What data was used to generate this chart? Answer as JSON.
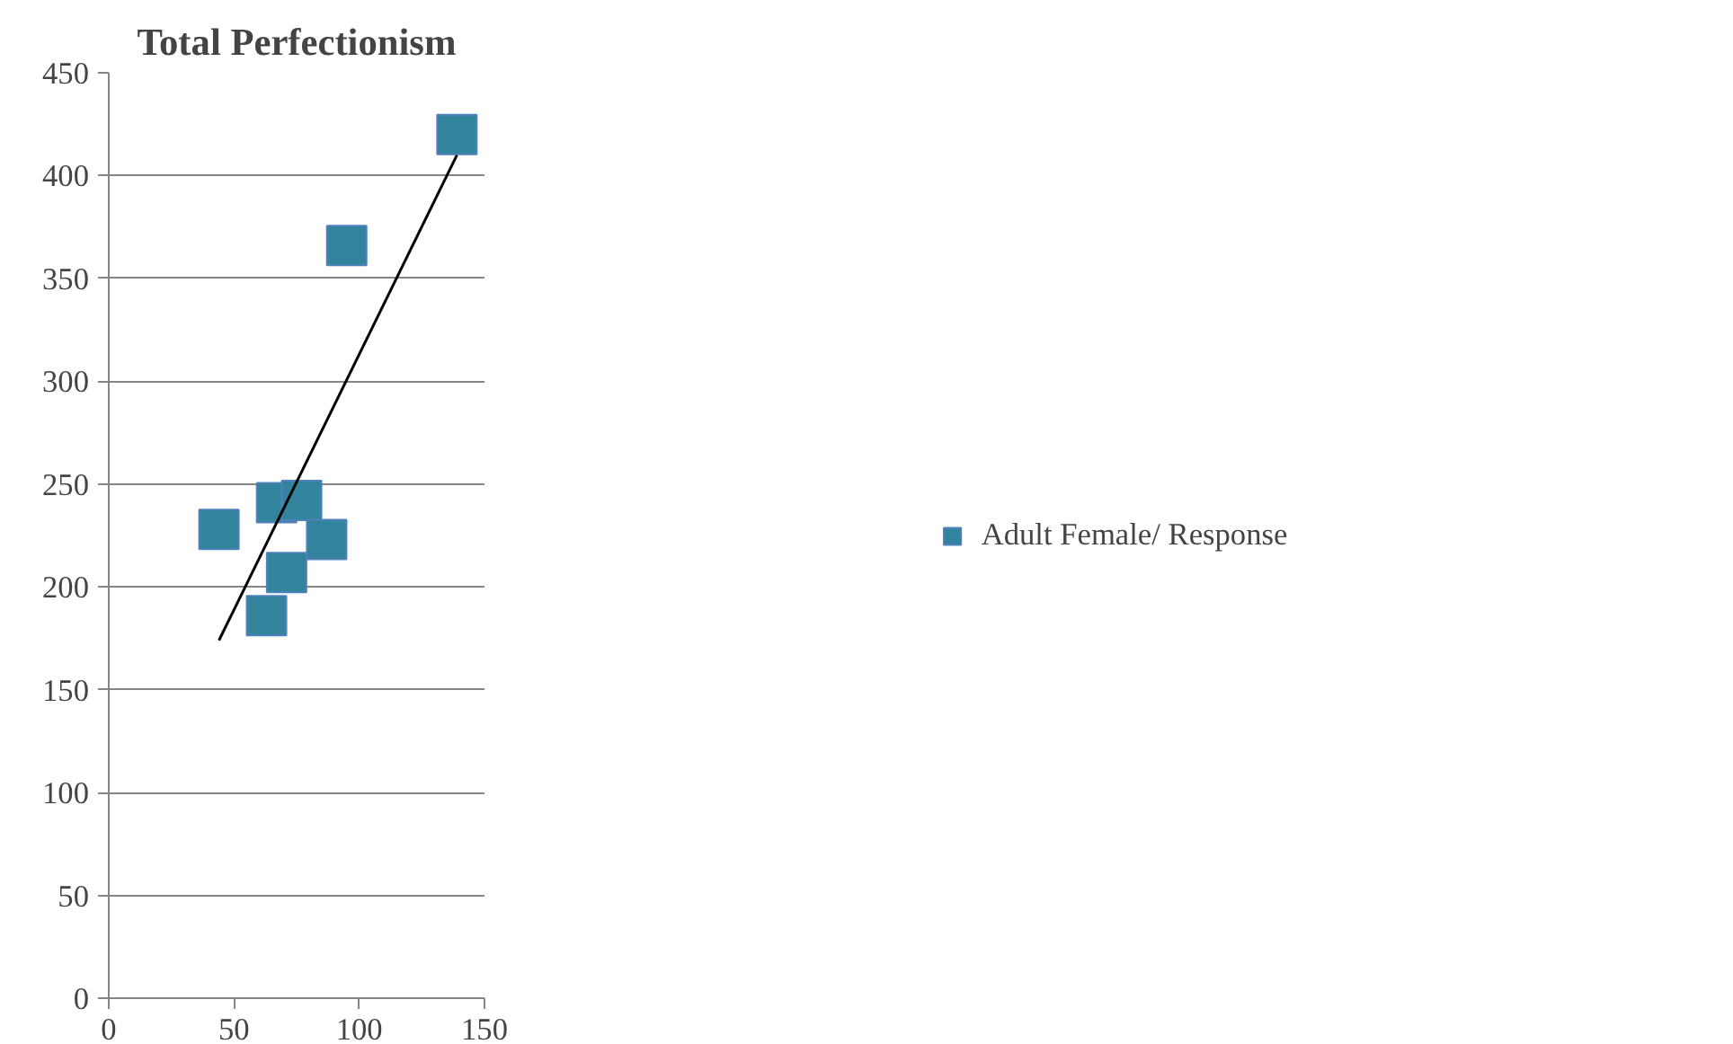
{
  "chart_data": {
    "type": "scatter",
    "title": "Total Perfectionism",
    "series": [
      {
        "name": "Adult Female/ Response",
        "color": "#31849b",
        "x": [
          44,
          63,
          67,
          71,
          77,
          87,
          95,
          139
        ],
        "values": [
          228,
          186,
          241,
          207,
          242,
          223,
          366,
          420
        ]
      },
      {
        "type": "line",
        "color": "#000000",
        "x": [
          44,
          139
        ],
        "values": [
          174,
          410
        ],
        "marker": "none"
      }
    ],
    "xlim": [
      0,
      150
    ],
    "xticks": [
      0,
      50,
      100,
      150
    ],
    "ylim": [
      0,
      450
    ],
    "yticks": [
      0,
      50,
      100,
      150,
      200,
      250,
      300,
      350,
      400,
      450
    ],
    "grid": "y",
    "legend": "right",
    "marker": "square"
  }
}
